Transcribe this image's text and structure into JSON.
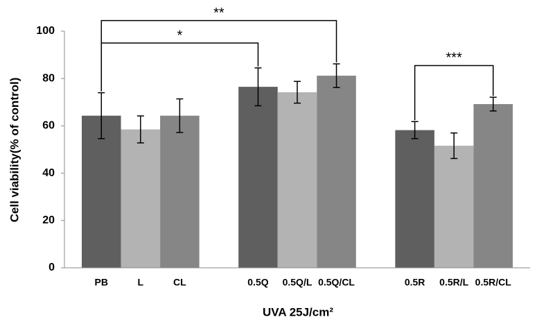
{
  "chart_data": {
    "type": "bar",
    "categories": [
      "PB",
      "L",
      "CL",
      null,
      "0.5Q",
      "0.5Q/L",
      "0.5Q/CL",
      null,
      "0.5R",
      "0.5R/L",
      "0.5R/CL"
    ],
    "values": [
      64.3,
      58.5,
      64.3,
      null,
      76.5,
      74.2,
      81.2,
      null,
      58.2,
      51.6,
      69.2
    ],
    "errors": [
      9.7,
      5.7,
      7.1,
      null,
      8,
      4.6,
      5,
      null,
      3.6,
      5.4,
      2.9
    ],
    "colors": [
      "#5f5f5f",
      "#b3b3b3",
      "#868686",
      null,
      "#5f5f5f",
      "#b3b3b3",
      "#868686",
      null,
      "#5f5f5f",
      "#b3b3b3",
      "#868686"
    ],
    "ylabel": "Cell viability(% of control)",
    "xlabel": "UVA 25J/cm²",
    "ylim": [
      0,
      100
    ],
    "yticks": [
      0,
      20,
      40,
      60,
      80,
      100
    ],
    "annotations": [
      {
        "text": "*",
        "from": 0,
        "to": 4,
        "y": 95
      },
      {
        "text": "**",
        "from": 0,
        "to": 6,
        "y": 104.5
      },
      {
        "text": "***",
        "from": 8,
        "to": 10,
        "y": 85.5
      }
    ]
  }
}
